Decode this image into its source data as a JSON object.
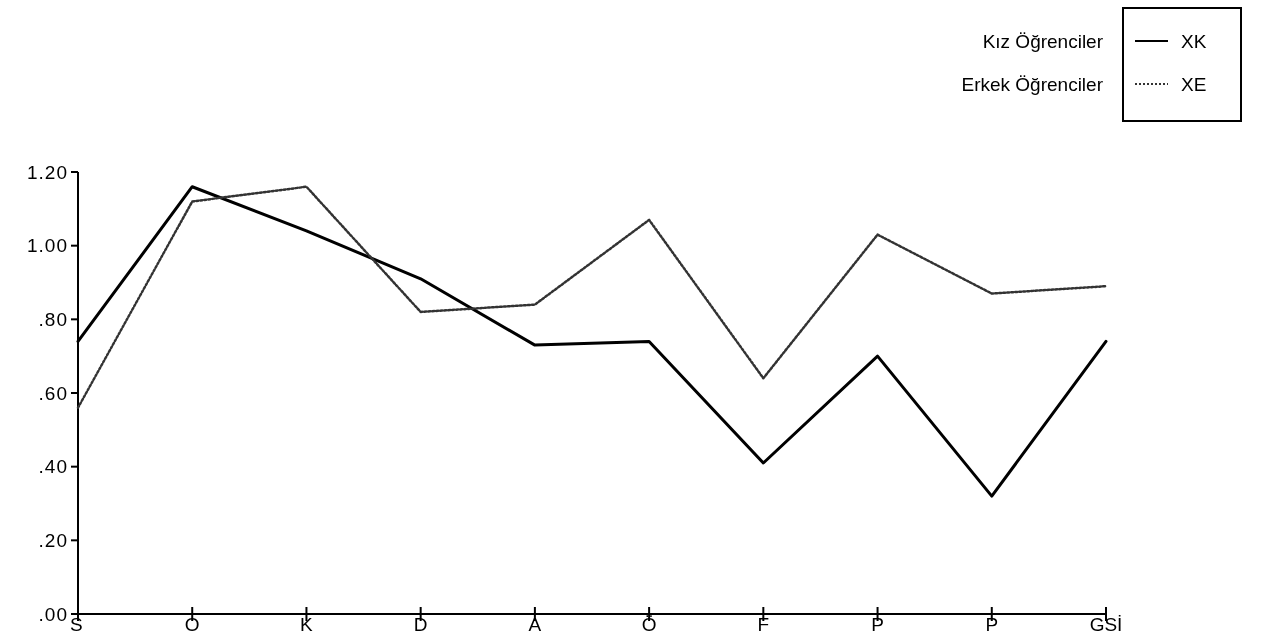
{
  "chart_data": {
    "type": "line",
    "categories": [
      "S",
      "O",
      "K",
      "D",
      "A",
      "Ö",
      "F",
      "P",
      "P",
      "GSİ"
    ],
    "series": [
      {
        "name": "XK",
        "color": "#000000",
        "line_style": "solid",
        "values": [
          0.74,
          1.16,
          1.04,
          0.91,
          0.73,
          0.74,
          0.41,
          0.7,
          0.32,
          0.74
        ]
      },
      {
        "name": "XE",
        "color": "#333333",
        "line_style": "dotted",
        "values": [
          0.56,
          1.12,
          1.16,
          0.82,
          0.84,
          1.07,
          0.64,
          1.03,
          0.87,
          0.89
        ]
      }
    ],
    "ylim": [
      0,
      1.2
    ],
    "yticks": [
      {
        "value": 0,
        "label": ".00"
      },
      {
        "value": 0.2,
        "label": ".20"
      },
      {
        "value": 0.4,
        "label": ".40"
      },
      {
        "value": 0.6,
        "label": ".60"
      },
      {
        "value": 0.8,
        "label": ".80"
      },
      {
        "value": 1,
        "label": "1.00"
      },
      {
        "value": 1.2,
        "label": "1.20"
      }
    ],
    "grid": false,
    "legend": "top right",
    "annotations": [
      "Kız Öğrenciler",
      "Erkek Öğrenciler"
    ]
  }
}
